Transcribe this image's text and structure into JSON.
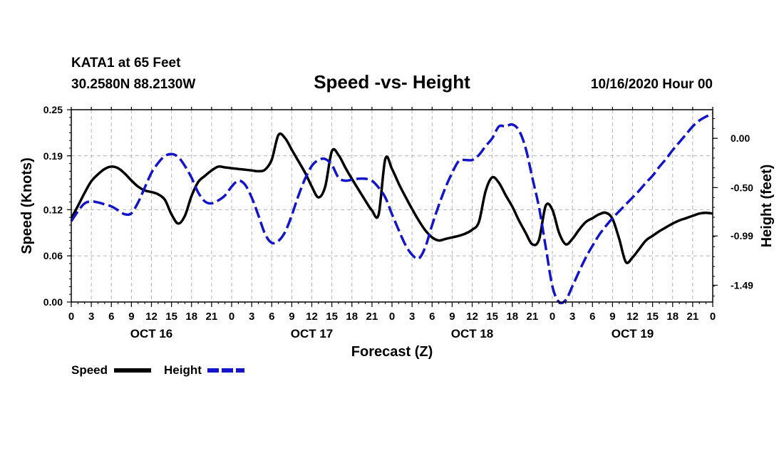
{
  "header": {
    "station": "KATA1 at 65 Feet",
    "coords": "30.2580N 88.2130W",
    "title": "Speed -vs- Height",
    "issued": "10/16/2020 Hour 00"
  },
  "colors": {
    "speed": "#000000",
    "height": "#1414c8",
    "grid": "#b4b4b4"
  },
  "chart_data": {
    "type": "line",
    "title": "Speed -vs- Height",
    "xlabel": "Forecast (Z)",
    "ylabel_left": "Speed (Knots)",
    "ylabel_right": "Height (feet)",
    "x_units": "hours from 10/16/2020 00Z",
    "xlim": [
      0,
      96
    ],
    "ylim_left": [
      0,
      0.25
    ],
    "ylim_right": [
      -1.66,
      0.29
    ],
    "grid": true,
    "x_ticks": [
      0,
      3,
      6,
      9,
      12,
      15,
      18,
      21,
      24,
      27,
      30,
      33,
      36,
      39,
      42,
      45,
      48,
      51,
      54,
      57,
      60,
      63,
      66,
      69,
      72,
      75,
      78,
      81,
      84,
      87,
      90,
      93,
      96
    ],
    "x_tick_labels": [
      "0",
      "3",
      "6",
      "9",
      "12",
      "15",
      "18",
      "21",
      "0",
      "3",
      "6",
      "9",
      "12",
      "15",
      "18",
      "21",
      "0",
      "3",
      "6",
      "9",
      "12",
      "15",
      "18",
      "21",
      "0",
      "3",
      "6",
      "9",
      "12",
      "15",
      "18",
      "21",
      "0"
    ],
    "day_labels": [
      {
        "x": 12,
        "label": "OCT 16"
      },
      {
        "x": 36,
        "label": "OCT 17"
      },
      {
        "x": 60,
        "label": "OCT 18"
      },
      {
        "x": 84,
        "label": "OCT 19"
      }
    ],
    "y_left_ticks": [
      0.0,
      0.06,
      0.12,
      0.19,
      0.25
    ],
    "y_left_tick_labels": [
      "0.00",
      "0.06",
      "0.12",
      "0.19",
      "0.25"
    ],
    "y_right_ticks": [
      0.0,
      -0.5,
      -0.99,
      -1.49
    ],
    "y_right_tick_labels": [
      "0.00",
      "-0.50",
      "-0.99",
      "-1.49"
    ],
    "legend": [
      {
        "name": "Speed",
        "style": "solid"
      },
      {
        "name": "Height",
        "style": "dashed"
      }
    ],
    "series": [
      {
        "name": "Speed",
        "axis": "left",
        "style": "solid",
        "x": [
          0,
          1,
          2,
          3,
          4,
          5,
          6,
          7,
          8,
          9,
          10,
          11,
          12,
          13,
          14,
          15,
          16,
          17,
          18,
          19,
          20,
          21,
          22,
          23,
          24,
          25,
          26,
          27,
          28,
          29,
          30,
          31,
          32,
          33,
          34,
          35,
          36,
          37,
          38,
          39,
          40,
          41,
          42,
          43,
          44,
          45,
          46,
          47,
          48,
          49,
          50,
          51,
          52,
          53,
          54,
          55,
          56,
          57,
          58,
          59,
          60,
          61,
          62,
          63,
          64,
          65,
          66,
          67,
          68,
          69,
          70,
          71,
          72,
          73,
          74,
          75,
          76,
          77,
          78,
          79,
          80,
          81,
          82,
          83,
          84,
          85,
          86,
          87,
          88,
          89,
          90,
          91,
          92,
          93,
          94,
          95,
          96
        ],
        "values": [
          0.109,
          0.125,
          0.142,
          0.157,
          0.166,
          0.173,
          0.176,
          0.174,
          0.167,
          0.158,
          0.15,
          0.145,
          0.143,
          0.14,
          0.133,
          0.114,
          0.102,
          0.112,
          0.138,
          0.156,
          0.164,
          0.171,
          0.176,
          0.175,
          0.174,
          0.173,
          0.172,
          0.171,
          0.17,
          0.172,
          0.185,
          0.217,
          0.213,
          0.198,
          0.183,
          0.168,
          0.15,
          0.136,
          0.15,
          0.196,
          0.191,
          0.175,
          0.16,
          0.146,
          0.132,
          0.119,
          0.114,
          0.186,
          0.173,
          0.154,
          0.137,
          0.121,
          0.106,
          0.093,
          0.084,
          0.08,
          0.082,
          0.084,
          0.086,
          0.089,
          0.094,
          0.104,
          0.144,
          0.162,
          0.155,
          0.139,
          0.124,
          0.106,
          0.09,
          0.075,
          0.081,
          0.125,
          0.12,
          0.09,
          0.075,
          0.082,
          0.094,
          0.104,
          0.109,
          0.114,
          0.116,
          0.108,
          0.082,
          0.052,
          0.058,
          0.069,
          0.08,
          0.086,
          0.092,
          0.097,
          0.102,
          0.106,
          0.109,
          0.112,
          0.115,
          0.116,
          0.115
        ]
      },
      {
        "name": "Height",
        "axis": "right",
        "style": "dashed",
        "x": [
          0,
          1,
          2,
          3,
          4,
          5,
          6,
          7,
          8,
          9,
          10,
          11,
          12,
          13,
          14,
          15,
          16,
          17,
          18,
          19,
          20,
          21,
          22,
          23,
          24,
          25,
          26,
          27,
          28,
          29,
          30,
          31,
          32,
          33,
          34,
          35,
          36,
          37,
          38,
          39,
          40,
          41,
          42,
          43,
          44,
          45,
          46,
          47,
          48,
          49,
          50,
          51,
          52,
          53,
          54,
          55,
          56,
          57,
          58,
          59,
          60,
          61,
          62,
          63,
          64,
          65,
          66,
          67,
          68,
          69,
          70,
          71,
          72,
          73,
          74,
          75,
          76,
          77,
          78,
          79,
          80,
          81,
          82,
          83,
          84,
          85,
          86,
          87,
          88,
          89,
          90,
          91,
          92,
          93,
          94,
          95,
          96
        ],
        "values": [
          -0.84,
          -0.74,
          -0.66,
          -0.64,
          -0.65,
          -0.67,
          -0.69,
          -0.73,
          -0.77,
          -0.76,
          -0.65,
          -0.5,
          -0.35,
          -0.25,
          -0.18,
          -0.16,
          -0.19,
          -0.28,
          -0.4,
          -0.55,
          -0.64,
          -0.66,
          -0.63,
          -0.58,
          -0.49,
          -0.43,
          -0.47,
          -0.6,
          -0.78,
          -0.97,
          -1.06,
          -1.04,
          -0.95,
          -0.78,
          -0.58,
          -0.41,
          -0.28,
          -0.22,
          -0.21,
          -0.27,
          -0.4,
          -0.43,
          -0.42,
          -0.41,
          -0.41,
          -0.43,
          -0.5,
          -0.6,
          -0.77,
          -0.93,
          -1.08,
          -1.18,
          -1.22,
          -1.1,
          -0.88,
          -0.68,
          -0.5,
          -0.35,
          -0.23,
          -0.22,
          -0.22,
          -0.17,
          -0.08,
          0.0,
          0.12,
          0.12,
          0.14,
          0.08,
          -0.1,
          -0.4,
          -0.7,
          -1.1,
          -1.5,
          -1.68,
          -1.64,
          -1.5,
          -1.35,
          -1.21,
          -1.09,
          -0.98,
          -0.89,
          -0.81,
          -0.74,
          -0.67,
          -0.6,
          -0.53,
          -0.45,
          -0.38,
          -0.29,
          -0.21,
          -0.12,
          -0.04,
          0.04,
          0.12,
          0.18,
          0.22,
          0.25
        ]
      }
    ]
  }
}
